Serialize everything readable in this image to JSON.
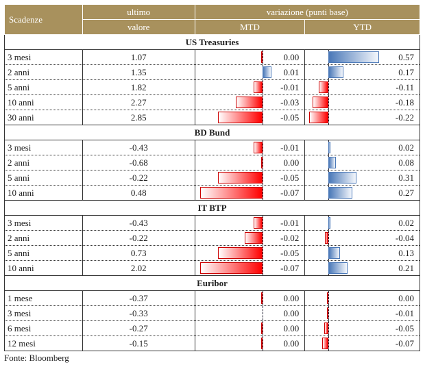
{
  "header": {
    "scadenze": "Scadenze",
    "ultimo": "ultimo",
    "valore": "valore",
    "variazione": "variazione (punti base)",
    "mtd": "MTD",
    "ytd": "YTD"
  },
  "sections": [
    {
      "title": "US Treasuries",
      "rows": [
        {
          "name": "3 mesi",
          "value": "1.07",
          "mtd": 0.0,
          "mtd_label": "0.00",
          "ytd": 0.57,
          "ytd_label": "0.57"
        },
        {
          "name": "2 anni",
          "value": "1.35",
          "mtd": 0.01,
          "mtd_label": "0.01",
          "ytd": 0.17,
          "ytd_label": "0.17"
        },
        {
          "name": "5 anni",
          "value": "1.82",
          "mtd": -0.01,
          "mtd_label": "-0.01",
          "ytd": -0.11,
          "ytd_label": "-0.11"
        },
        {
          "name": "10 anni",
          "value": "2.27",
          "mtd": -0.03,
          "mtd_label": "-0.03",
          "ytd": -0.18,
          "ytd_label": "-0.18"
        },
        {
          "name": "30 anni",
          "value": "2.85",
          "mtd": -0.05,
          "mtd_label": "-0.05",
          "ytd": -0.22,
          "ytd_label": "-0.22"
        }
      ]
    },
    {
      "title": "BD Bund",
      "rows": [
        {
          "name": "3 mesi",
          "value": "-0.43",
          "mtd": -0.01,
          "mtd_label": "-0.01",
          "ytd": 0.02,
          "ytd_label": "0.02"
        },
        {
          "name": "2 anni",
          "value": "-0.68",
          "mtd": 0.0,
          "mtd_label": "0.00",
          "ytd": 0.08,
          "ytd_label": "0.08"
        },
        {
          "name": "5 anni",
          "value": "-0.22",
          "mtd": -0.05,
          "mtd_label": "-0.05",
          "ytd": 0.31,
          "ytd_label": "0.31"
        },
        {
          "name": "10 anni",
          "value": "0.48",
          "mtd": -0.07,
          "mtd_label": "-0.07",
          "ytd": 0.27,
          "ytd_label": "0.27"
        }
      ]
    },
    {
      "title": "IT BTP",
      "rows": [
        {
          "name": "3 mesi",
          "value": "-0.43",
          "mtd": -0.01,
          "mtd_label": "-0.01",
          "ytd": 0.02,
          "ytd_label": "0.02"
        },
        {
          "name": "2 anni",
          "value": "-0.22",
          "mtd": -0.02,
          "mtd_label": "-0.02",
          "ytd": -0.04,
          "ytd_label": "-0.04"
        },
        {
          "name": "5 anni",
          "value": "0.73",
          "mtd": -0.05,
          "mtd_label": "-0.05",
          "ytd": 0.13,
          "ytd_label": "0.13"
        },
        {
          "name": "10 anni",
          "value": "2.02",
          "mtd": -0.07,
          "mtd_label": "-0.07",
          "ytd": 0.21,
          "ytd_label": "0.21"
        }
      ]
    },
    {
      "title": "Euribor",
      "rows": [
        {
          "name": "1 mese",
          "value": "-0.37",
          "mtd": 0.0,
          "mtd_label": "0.00",
          "ytd": 0.0,
          "ytd_label": "0.00"
        },
        {
          "name": "3 mesi",
          "value": "-0.33",
          "mtd": 0.0,
          "mtd_label": "0.00",
          "ytd": -0.01,
          "ytd_label": "-0.01"
        },
        {
          "name": "6 mesi",
          "value": "-0.27",
          "mtd": 0.0,
          "mtd_label": "0.00",
          "ytd": -0.05,
          "ytd_label": "-0.05"
        },
        {
          "name": "12 mesi",
          "value": "-0.15",
          "mtd": 0.0,
          "mtd_label": "0.00",
          "ytd": -0.07,
          "ytd_label": "-0.07"
        }
      ]
    }
  ],
  "colors": {
    "header": "#a8915d",
    "negative": "#ff0000",
    "positive": "#4a78b8"
  },
  "source": "Fonte: Bloomberg"
}
